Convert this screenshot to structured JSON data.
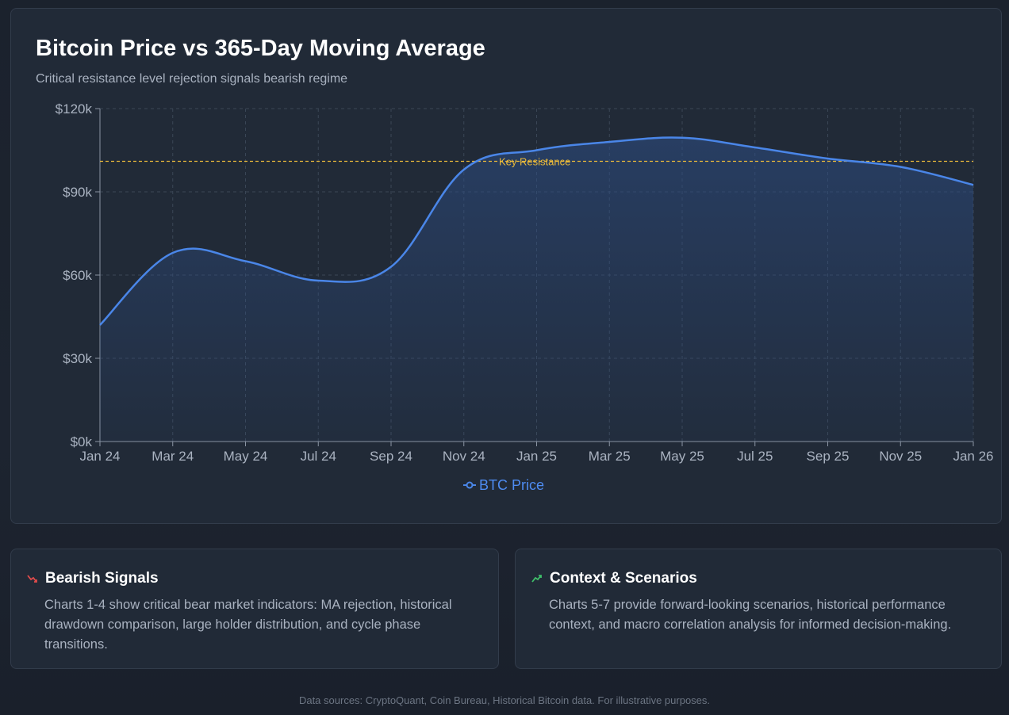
{
  "header": {
    "title": "Bitcoin Price vs 365-Day Moving Average",
    "subtitle": "Critical resistance level rejection signals bearish regime"
  },
  "chart_data": {
    "type": "line",
    "title": "Bitcoin Price vs 365-Day Moving Average",
    "subtitle": "Critical resistance level rejection signals bearish regime",
    "x_tick_labels": [
      "Jan 24",
      "Mar 24",
      "May 24",
      "Jul 24",
      "Sep 24",
      "Nov 24",
      "Jan 25",
      "Mar 25",
      "May 25",
      "Jul 25",
      "Sep 25",
      "Nov 25",
      "Jan 26"
    ],
    "y_tick_labels": [
      "$0k",
      "$30k",
      "$60k",
      "$90k",
      "$120k"
    ],
    "y_ticks": [
      0,
      30000,
      60000,
      90000,
      120000
    ],
    "ylim": [
      0,
      120000
    ],
    "grid": true,
    "legend_position": "bottom-center",
    "series": [
      {
        "name": "BTC Price",
        "color": "#4a86e8",
        "x": [
          "Jan 24",
          "Mar 24",
          "May 24",
          "Jul 24",
          "Sep 24",
          "Nov 24",
          "Jan 25",
          "Mar 25",
          "May 25",
          "Jul 25",
          "Sep 25",
          "Nov 25",
          "Jan 26"
        ],
        "y": [
          42000,
          68000,
          65000,
          58000,
          63000,
          98000,
          105000,
          108000,
          109500,
          106000,
          102000,
          99000,
          92500
        ]
      }
    ],
    "reference_line": {
      "label": "Key Resistance",
      "value": 101000,
      "color": "#e9b93a"
    }
  },
  "cards": {
    "bearish": {
      "title": "Bearish Signals",
      "icon": "chart-down-icon",
      "body": "Charts 1-4 show critical bear market indicators: MA rejection, historical drawdown comparison, large holder distribution, and cycle phase transitions."
    },
    "context": {
      "title": "Context & Scenarios",
      "icon": "chart-up-icon",
      "body": "Charts 5-7 provide forward-looking scenarios, historical performance context, and macro correlation analysis for informed decision-making."
    }
  },
  "footer": "Data sources: CryptoQuant, Coin Bureau, Historical Bitcoin data. For illustrative purposes."
}
